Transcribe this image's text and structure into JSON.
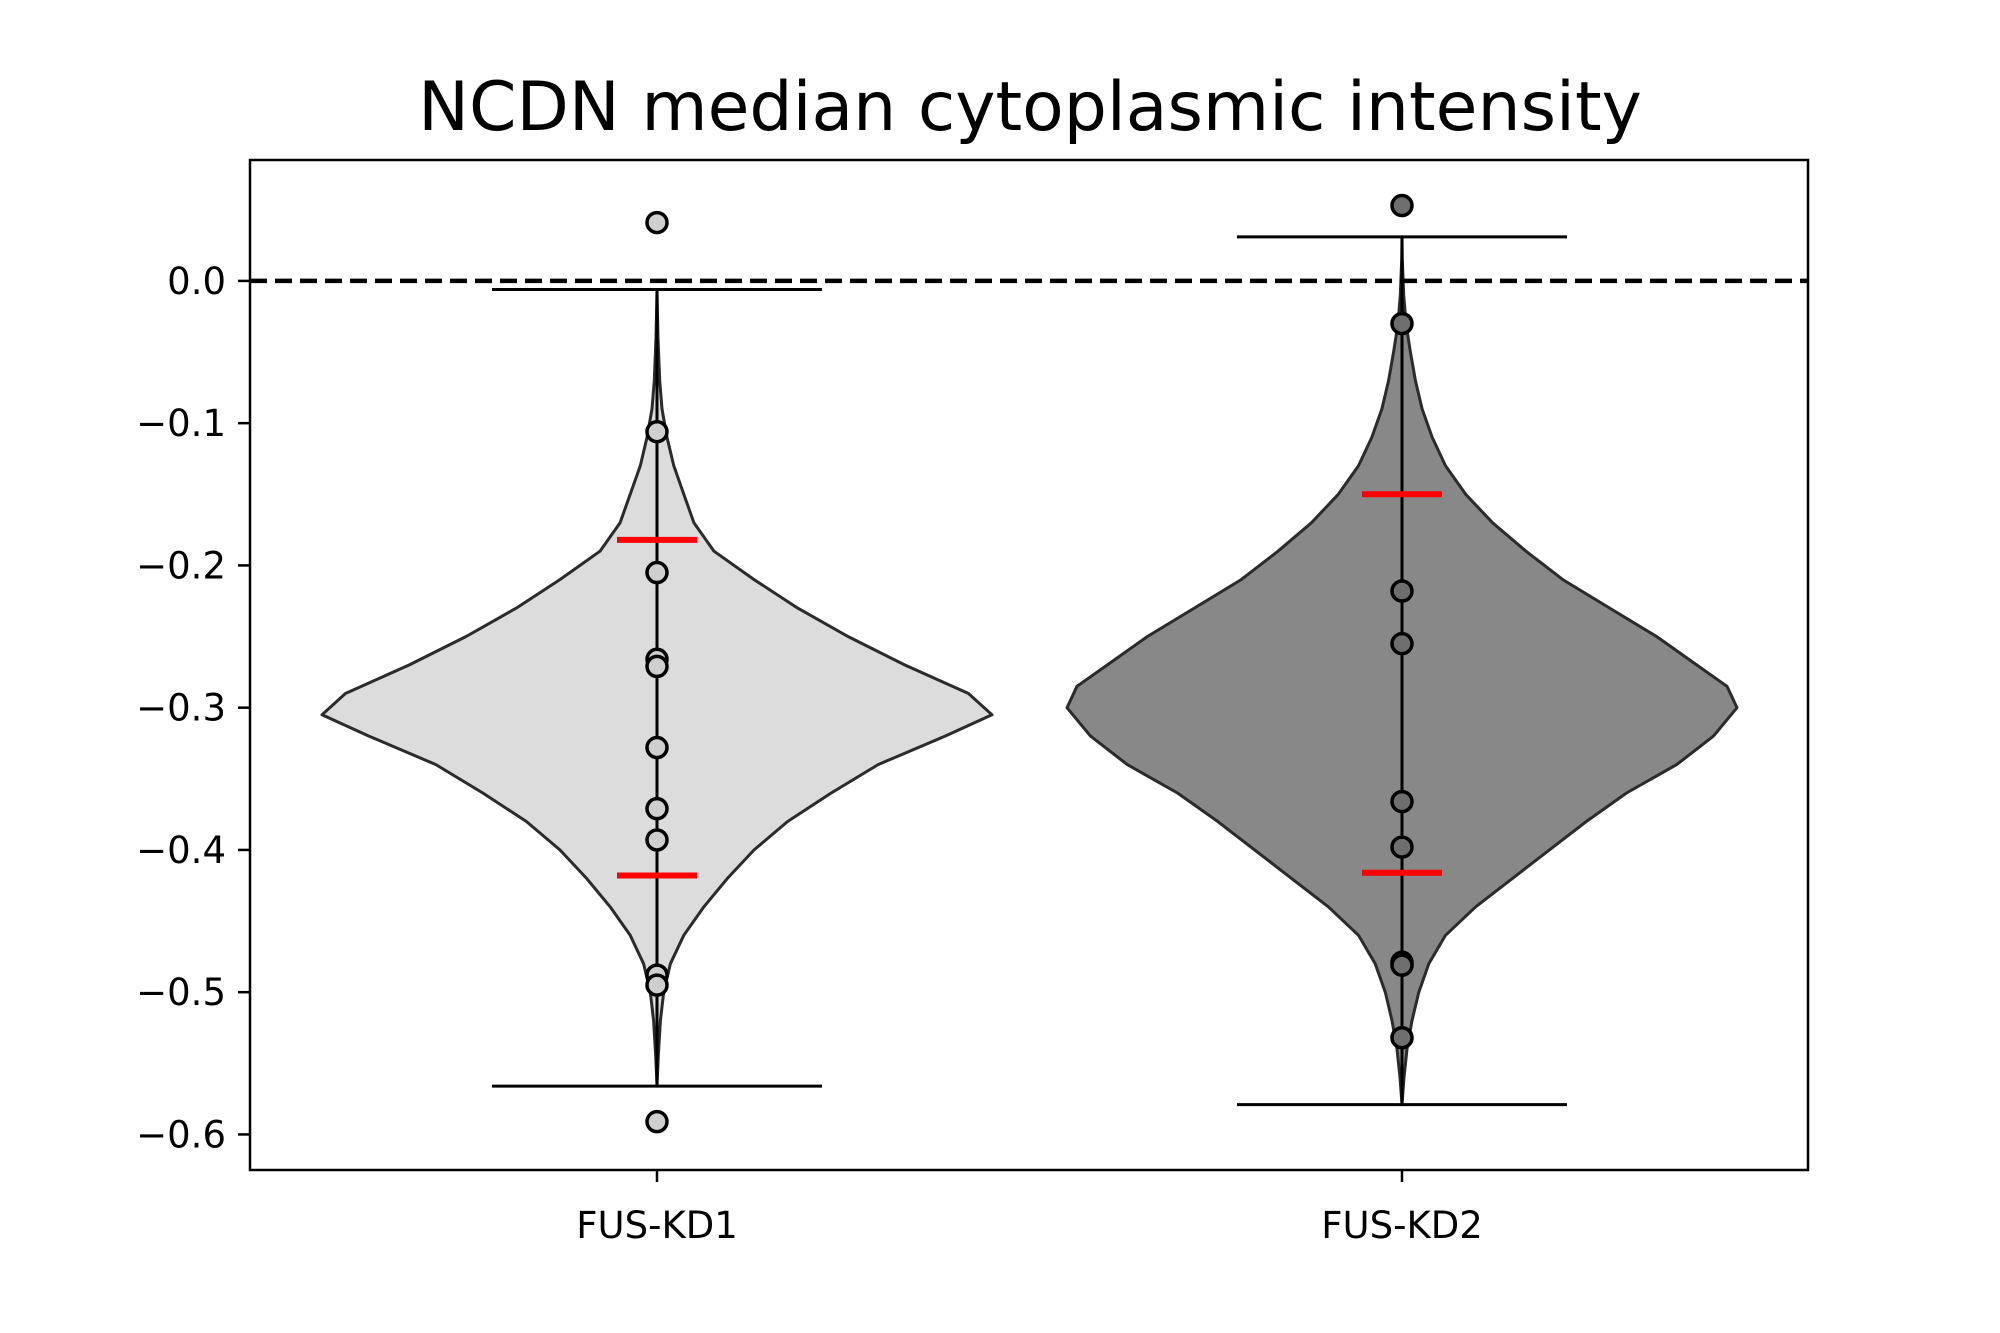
{
  "chart_data": {
    "type": "violin",
    "title": "NCDN median cytoplasmic intensity",
    "xlabel": "",
    "ylabel": "",
    "ylim": [
      -0.625,
      0.085
    ],
    "yticks": [
      0.0,
      -0.1,
      -0.2,
      -0.3,
      -0.4,
      -0.5,
      -0.6
    ],
    "ytick_labels": [
      "0.0",
      "−0.1",
      "−0.2",
      "−0.3",
      "−0.4",
      "−0.5",
      "−0.6"
    ],
    "categories": [
      "FUS-KD1",
      "FUS-KD2"
    ],
    "reference_line": {
      "y": 0.0,
      "style": "dashed",
      "color": "#000000"
    },
    "grid": false,
    "legend": "none",
    "series": [
      {
        "category": "FUS-KD1",
        "fill_color": "#dcdcdc",
        "point_color": "#cfcfcf",
        "min": -0.566,
        "max": -0.006,
        "quartiles": [
          -0.418,
          -0.182
        ],
        "points": [
          0.041,
          -0.106,
          -0.205,
          -0.266,
          -0.271,
          -0.328,
          -0.371,
          -0.393,
          -0.488,
          -0.495,
          -0.591
        ],
        "density": [
          [
            -0.566,
            0.0
          ],
          [
            -0.545,
            0.004
          ],
          [
            -0.52,
            0.01
          ],
          [
            -0.5,
            0.02
          ],
          [
            -0.48,
            0.04
          ],
          [
            -0.46,
            0.08
          ],
          [
            -0.44,
            0.14
          ],
          [
            -0.42,
            0.21
          ],
          [
            -0.4,
            0.29
          ],
          [
            -0.38,
            0.39
          ],
          [
            -0.36,
            0.52
          ],
          [
            -0.34,
            0.66
          ],
          [
            -0.32,
            0.86
          ],
          [
            -0.305,
            1.0
          ],
          [
            -0.29,
            0.93
          ],
          [
            -0.27,
            0.74
          ],
          [
            -0.25,
            0.57
          ],
          [
            -0.23,
            0.42
          ],
          [
            -0.21,
            0.29
          ],
          [
            -0.19,
            0.17
          ],
          [
            -0.17,
            0.11
          ],
          [
            -0.15,
            0.08
          ],
          [
            -0.13,
            0.05
          ],
          [
            -0.11,
            0.03
          ],
          [
            -0.09,
            0.015
          ],
          [
            -0.07,
            0.008
          ],
          [
            -0.04,
            0.003
          ],
          [
            -0.006,
            0.0
          ]
        ]
      },
      {
        "category": "FUS-KD2",
        "fill_color": "#888888",
        "point_color": "#6e6e6e",
        "min": -0.579,
        "max": 0.031,
        "quartiles": [
          -0.416,
          -0.15
        ],
        "points": [
          0.053,
          -0.03,
          -0.218,
          -0.255,
          -0.366,
          -0.398,
          -0.479,
          -0.481,
          -0.532
        ],
        "density": [
          [
            -0.579,
            0.0
          ],
          [
            -0.56,
            0.006
          ],
          [
            -0.54,
            0.015
          ],
          [
            -0.52,
            0.03
          ],
          [
            -0.5,
            0.05
          ],
          [
            -0.48,
            0.08
          ],
          [
            -0.46,
            0.13
          ],
          [
            -0.44,
            0.22
          ],
          [
            -0.42,
            0.33
          ],
          [
            -0.4,
            0.44
          ],
          [
            -0.38,
            0.55
          ],
          [
            -0.36,
            0.67
          ],
          [
            -0.34,
            0.82
          ],
          [
            -0.32,
            0.93
          ],
          [
            -0.3,
            1.0
          ],
          [
            -0.285,
            0.97
          ],
          [
            -0.27,
            0.88
          ],
          [
            -0.25,
            0.76
          ],
          [
            -0.23,
            0.62
          ],
          [
            -0.21,
            0.48
          ],
          [
            -0.19,
            0.37
          ],
          [
            -0.17,
            0.27
          ],
          [
            -0.15,
            0.19
          ],
          [
            -0.13,
            0.13
          ],
          [
            -0.11,
            0.09
          ],
          [
            -0.09,
            0.06
          ],
          [
            -0.07,
            0.04
          ],
          [
            -0.05,
            0.025
          ],
          [
            -0.03,
            0.012
          ],
          [
            -0.01,
            0.005
          ],
          [
            0.015,
            0.001
          ],
          [
            0.031,
            0.0
          ]
        ]
      }
    ],
    "colors": {
      "quartile_marker": "#ff0000",
      "outline": "#2b2b2b",
      "whisker": "#000000"
    }
  }
}
